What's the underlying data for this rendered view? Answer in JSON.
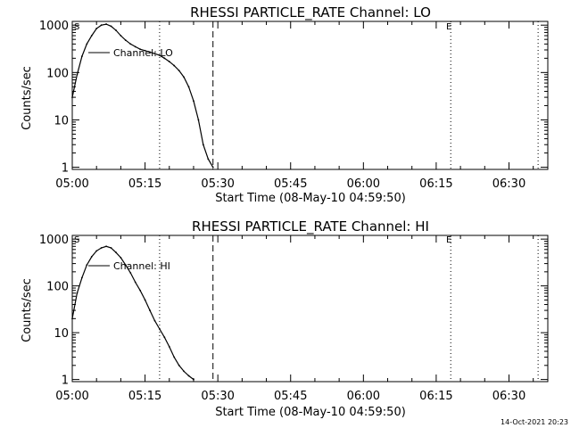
{
  "chart_data": [
    {
      "type": "line",
      "title": "RHESSI PARTICLE_RATE Channel: LO",
      "xlabel": "Start Time (08-May-10 04:59:50)",
      "ylabel": "Counts/sec",
      "y_scale": "log",
      "ylim": [
        0.9,
        1200
      ],
      "xlim": [
        "05:00",
        "06:38"
      ],
      "x_ticks": [
        "05:00",
        "05:15",
        "05:30",
        "05:45",
        "06:00",
        "06:15",
        "06:30"
      ],
      "y_ticks": [
        "1",
        "10",
        "100",
        "1000"
      ],
      "legend": {
        "label": "Channel: LO",
        "position": "top-left"
      },
      "flags": {
        "left": "S",
        "right": "E"
      },
      "markers": [
        {
          "time": "05:18",
          "style": "dotted"
        },
        {
          "time": "05:29",
          "style": "dashed"
        },
        {
          "time": "06:18",
          "style": "dotted"
        },
        {
          "time": "06:36",
          "style": "dotted"
        }
      ],
      "series": [
        {
          "x": [
            "05:00",
            "05:01",
            "05:02",
            "05:03",
            "05:04",
            "05:05",
            "05:06",
            "05:07",
            "05:08",
            "05:09",
            "05:10",
            "05:11",
            "05:12",
            "05:13",
            "05:14",
            "05:15",
            "05:16",
            "05:17",
            "05:18",
            "05:19",
            "05:20",
            "05:21",
            "05:22",
            "05:23",
            "05:24",
            "05:25",
            "05:26",
            "05:27",
            "05:28",
            "05:29"
          ],
          "values": [
            30,
            90,
            220,
            400,
            600,
            850,
            1000,
            1050,
            950,
            780,
            600,
            480,
            400,
            350,
            310,
            290,
            270,
            250,
            230,
            200,
            170,
            140,
            110,
            80,
            50,
            25,
            10,
            3,
            1.5,
            1
          ]
        }
      ]
    },
    {
      "type": "line",
      "title": "RHESSI PARTICLE_RATE Channel: HI",
      "xlabel": "Start Time (08-May-10 04:59:50)",
      "ylabel": "Counts/sec",
      "y_scale": "log",
      "ylim": [
        0.9,
        1200
      ],
      "xlim": [
        "05:00",
        "06:38"
      ],
      "x_ticks": [
        "05:00",
        "05:15",
        "05:30",
        "05:45",
        "06:00",
        "06:15",
        "06:30"
      ],
      "y_ticks": [
        "1",
        "10",
        "100",
        "1000"
      ],
      "legend": {
        "label": "Channel: HI",
        "position": "top-left"
      },
      "flags": {
        "left": "S",
        "right": "E"
      },
      "markers": [
        {
          "time": "05:18",
          "style": "dotted"
        },
        {
          "time": "05:29",
          "style": "dashed"
        },
        {
          "time": "06:18",
          "style": "dotted"
        },
        {
          "time": "06:36",
          "style": "dotted"
        }
      ],
      "series": [
        {
          "x": [
            "05:00",
            "05:01",
            "05:02",
            "05:03",
            "05:04",
            "05:05",
            "05:06",
            "05:07",
            "05:08",
            "05:09",
            "05:10",
            "05:11",
            "05:12",
            "05:13",
            "05:14",
            "05:15",
            "05:16",
            "05:17",
            "05:18",
            "05:19",
            "05:20",
            "05:21",
            "05:22",
            "05:23",
            "05:24",
            "05:25"
          ],
          "values": [
            20,
            70,
            150,
            280,
            420,
            560,
            650,
            700,
            650,
            520,
            400,
            280,
            190,
            120,
            80,
            50,
            30,
            18,
            12,
            8,
            5,
            3,
            2,
            1.5,
            1.2,
            1
          ]
        }
      ]
    }
  ],
  "footer": {
    "timestamp": "14-Oct-2021 20:23"
  },
  "colors": {
    "background": "#ffffff",
    "foreground": "#000000"
  }
}
